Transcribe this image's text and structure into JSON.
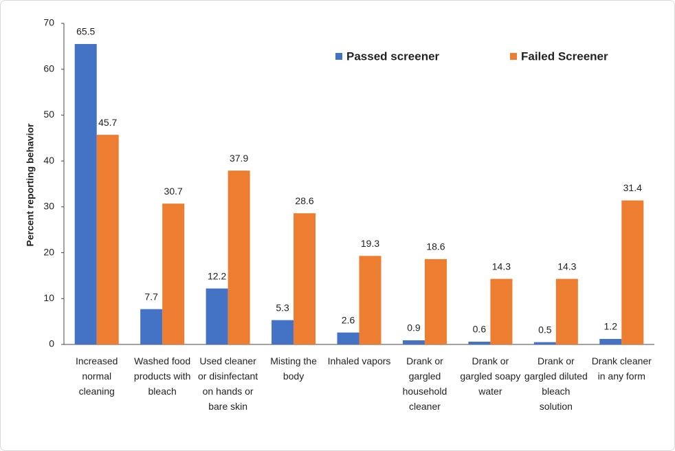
{
  "chart_data": {
    "type": "bar",
    "y_label": "Percent reporting behavior",
    "categories": [
      "Increased normal cleaning",
      "Washed food products with bleach",
      "Used cleaner or disinfectant on hands or bare skin",
      "Misting the body",
      "Inhaled vapors",
      "Drank or gargled household cleaner",
      "Drank or gargled soapy water",
      "Drank or gargled diluted bleach solution",
      "Drank cleaner in any form"
    ],
    "series": [
      {
        "name": "Passed screener",
        "color": "#4472c4",
        "values": [
          65.5,
          7.7,
          12.2,
          5.3,
          2.6,
          0.9,
          0.6,
          0.5,
          1.2
        ]
      },
      {
        "name": "Failed Screener",
        "color": "#ed7d31",
        "values": [
          45.7,
          30.7,
          37.9,
          28.6,
          19.3,
          18.6,
          14.3,
          14.3,
          31.4
        ]
      }
    ],
    "ylim": [
      0,
      70
    ],
    "yticks": [
      0,
      10,
      20,
      30,
      40,
      50,
      60,
      70
    ],
    "grid": false,
    "legend": "top"
  }
}
